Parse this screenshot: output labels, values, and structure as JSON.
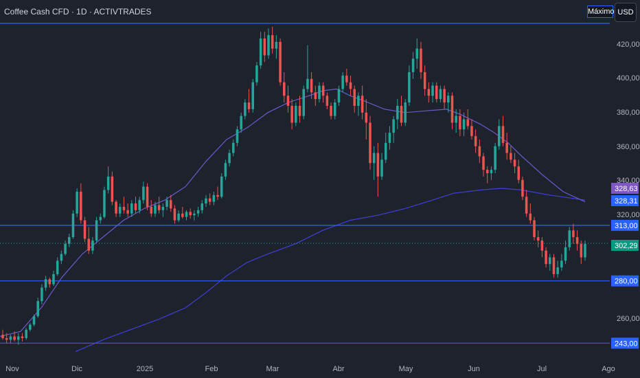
{
  "header": {
    "title": "Coffee Cash CFD · 1D · ACTIVTRADES",
    "max_label": "Máximo",
    "currency_label": "USD"
  },
  "colors": {
    "background": "#1e222d",
    "up": "#26a69a",
    "down": "#ef5350",
    "level_line": "#2962ff",
    "ma_short": "#6a5acd",
    "ma_long": "#3f3fd9"
  },
  "chart_data": {
    "type": "candlestick",
    "ylim": [
      237,
      433
    ],
    "y_ticks": [
      "420,00",
      "400,00",
      "380,00",
      "360,00",
      "340,00",
      "320,00",
      "260,00"
    ],
    "x_ticks": [
      "Nov",
      "Dic",
      "2025",
      "Feb",
      "Mar",
      "Abr",
      "May",
      "Jun",
      "Jul",
      "Ago"
    ],
    "horizontal_levels": [
      {
        "value": 433,
        "label": ""
      },
      {
        "value": 313.0,
        "label": "313,00"
      },
      {
        "value": 280.0,
        "label": "280,00"
      },
      {
        "value": 243.0,
        "label": "243,00"
      }
    ],
    "price_tags": [
      {
        "value": 328.63,
        "label": "328,63",
        "color": "#7e57c2"
      },
      {
        "value": 328.31,
        "label": "328,31",
        "color": "#2962ff"
      },
      {
        "value": 302.29,
        "label": "302,29",
        "color": "#089981"
      }
    ],
    "ma_short": [
      [
        0,
        247
      ],
      [
        30,
        250
      ],
      [
        60,
        264
      ],
      [
        90,
        282
      ],
      [
        120,
        296
      ],
      [
        150,
        306
      ],
      [
        180,
        316
      ],
      [
        210,
        323
      ],
      [
        240,
        328
      ],
      [
        270,
        336
      ],
      [
        300,
        351
      ],
      [
        330,
        364
      ],
      [
        360,
        371
      ],
      [
        390,
        380
      ],
      [
        420,
        386
      ],
      [
        450,
        390
      ],
      [
        470,
        393
      ],
      [
        490,
        394
      ],
      [
        510,
        390
      ],
      [
        530,
        387
      ],
      [
        560,
        382
      ],
      [
        590,
        380
      ],
      [
        620,
        381
      ],
      [
        650,
        382
      ],
      [
        670,
        379
      ],
      [
        700,
        373
      ],
      [
        720,
        368
      ],
      [
        740,
        362
      ],
      [
        760,
        354
      ],
      [
        790,
        343
      ],
      [
        820,
        333
      ],
      [
        852,
        327
      ]
    ],
    "ma_long": [
      [
        110,
        238
      ],
      [
        150,
        245
      ],
      [
        190,
        251
      ],
      [
        230,
        257
      ],
      [
        270,
        264
      ],
      [
        300,
        273
      ],
      [
        330,
        283
      ],
      [
        360,
        291
      ],
      [
        390,
        296
      ],
      [
        430,
        302
      ],
      [
        470,
        310
      ],
      [
        510,
        316
      ],
      [
        550,
        319
      ],
      [
        590,
        323
      ],
      [
        630,
        328
      ],
      [
        660,
        332
      ],
      [
        700,
        334
      ],
      [
        730,
        335
      ],
      [
        760,
        334
      ],
      [
        800,
        331
      ],
      [
        852,
        328
      ]
    ],
    "candles": [
      {
        "o": 248,
        "h": 251,
        "l": 245,
        "c": 246
      },
      {
        "o": 246,
        "h": 249,
        "l": 243,
        "c": 245
      },
      {
        "o": 245,
        "h": 248,
        "l": 243,
        "c": 247
      },
      {
        "o": 247,
        "h": 250,
        "l": 244,
        "c": 245
      },
      {
        "o": 245,
        "h": 249,
        "l": 242,
        "c": 247
      },
      {
        "o": 247,
        "h": 249,
        "l": 244,
        "c": 246
      },
      {
        "o": 246,
        "h": 252,
        "l": 245,
        "c": 251
      },
      {
        "o": 251,
        "h": 255,
        "l": 250,
        "c": 254
      },
      {
        "o": 254,
        "h": 260,
        "l": 253,
        "c": 259
      },
      {
        "o": 259,
        "h": 270,
        "l": 258,
        "c": 268
      },
      {
        "o": 268,
        "h": 278,
        "l": 266,
        "c": 276
      },
      {
        "o": 276,
        "h": 283,
        "l": 274,
        "c": 281
      },
      {
        "o": 281,
        "h": 282,
        "l": 276,
        "c": 278
      },
      {
        "o": 278,
        "h": 286,
        "l": 277,
        "c": 284
      },
      {
        "o": 284,
        "h": 294,
        "l": 283,
        "c": 292
      },
      {
        "o": 292,
        "h": 298,
        "l": 290,
        "c": 296
      },
      {
        "o": 296,
        "h": 304,
        "l": 295,
        "c": 302
      },
      {
        "o": 302,
        "h": 308,
        "l": 300,
        "c": 306
      },
      {
        "o": 306,
        "h": 322,
        "l": 305,
        "c": 320
      },
      {
        "o": 320,
        "h": 335,
        "l": 318,
        "c": 333
      },
      {
        "o": 333,
        "h": 338,
        "l": 314,
        "c": 316
      },
      {
        "o": 316,
        "h": 318,
        "l": 303,
        "c": 305
      },
      {
        "o": 305,
        "h": 312,
        "l": 296,
        "c": 298
      },
      {
        "o": 298,
        "h": 306,
        "l": 296,
        "c": 304
      },
      {
        "o": 304,
        "h": 318,
        "l": 303,
        "c": 316
      },
      {
        "o": 316,
        "h": 320,
        "l": 314,
        "c": 318
      },
      {
        "o": 318,
        "h": 336,
        "l": 317,
        "c": 334
      },
      {
        "o": 334,
        "h": 348,
        "l": 332,
        "c": 342
      },
      {
        "o": 342,
        "h": 345,
        "l": 325,
        "c": 327
      },
      {
        "o": 327,
        "h": 328,
        "l": 318,
        "c": 320
      },
      {
        "o": 320,
        "h": 326,
        "l": 318,
        "c": 324
      },
      {
        "o": 324,
        "h": 330,
        "l": 320,
        "c": 322
      },
      {
        "o": 322,
        "h": 326,
        "l": 318,
        "c": 320
      },
      {
        "o": 320,
        "h": 328,
        "l": 318,
        "c": 326
      },
      {
        "o": 326,
        "h": 330,
        "l": 320,
        "c": 322
      },
      {
        "o": 322,
        "h": 330,
        "l": 320,
        "c": 328
      },
      {
        "o": 328,
        "h": 339,
        "l": 326,
        "c": 336
      },
      {
        "o": 336,
        "h": 338,
        "l": 322,
        "c": 324
      },
      {
        "o": 324,
        "h": 328,
        "l": 318,
        "c": 320
      },
      {
        "o": 320,
        "h": 327,
        "l": 318,
        "c": 325
      },
      {
        "o": 325,
        "h": 330,
        "l": 320,
        "c": 322
      },
      {
        "o": 322,
        "h": 326,
        "l": 318,
        "c": 324
      },
      {
        "o": 324,
        "h": 330,
        "l": 322,
        "c": 328
      },
      {
        "o": 328,
        "h": 331,
        "l": 321,
        "c": 323
      },
      {
        "o": 323,
        "h": 325,
        "l": 314,
        "c": 316
      },
      {
        "o": 316,
        "h": 322,
        "l": 315,
        "c": 320
      },
      {
        "o": 320,
        "h": 324,
        "l": 317,
        "c": 318
      },
      {
        "o": 318,
        "h": 322,
        "l": 316,
        "c": 321
      },
      {
        "o": 321,
        "h": 323,
        "l": 317,
        "c": 319
      },
      {
        "o": 319,
        "h": 322,
        "l": 316,
        "c": 320
      },
      {
        "o": 320,
        "h": 324,
        "l": 318,
        "c": 322
      },
      {
        "o": 322,
        "h": 328,
        "l": 320,
        "c": 326
      },
      {
        "o": 326,
        "h": 331,
        "l": 324,
        "c": 329
      },
      {
        "o": 329,
        "h": 332,
        "l": 325,
        "c": 327
      },
      {
        "o": 327,
        "h": 333,
        "l": 325,
        "c": 331
      },
      {
        "o": 331,
        "h": 336,
        "l": 328,
        "c": 330
      },
      {
        "o": 330,
        "h": 344,
        "l": 329,
        "c": 342
      },
      {
        "o": 342,
        "h": 352,
        "l": 340,
        "c": 350
      },
      {
        "o": 350,
        "h": 358,
        "l": 348,
        "c": 356
      },
      {
        "o": 356,
        "h": 364,
        "l": 354,
        "c": 362
      },
      {
        "o": 362,
        "h": 372,
        "l": 360,
        "c": 370
      },
      {
        "o": 370,
        "h": 380,
        "l": 368,
        "c": 378
      },
      {
        "o": 378,
        "h": 388,
        "l": 376,
        "c": 386
      },
      {
        "o": 386,
        "h": 394,
        "l": 380,
        "c": 382
      },
      {
        "o": 382,
        "h": 400,
        "l": 380,
        "c": 398
      },
      {
        "o": 398,
        "h": 410,
        "l": 396,
        "c": 408
      },
      {
        "o": 408,
        "h": 428,
        "l": 406,
        "c": 424
      },
      {
        "o": 424,
        "h": 428,
        "l": 410,
        "c": 414
      },
      {
        "o": 414,
        "h": 430,
        "l": 412,
        "c": 426
      },
      {
        "o": 426,
        "h": 431,
        "l": 415,
        "c": 418
      },
      {
        "o": 418,
        "h": 426,
        "l": 412,
        "c": 422
      },
      {
        "o": 422,
        "h": 424,
        "l": 396,
        "c": 398
      },
      {
        "o": 398,
        "h": 404,
        "l": 386,
        "c": 390
      },
      {
        "o": 390,
        "h": 396,
        "l": 380,
        "c": 384
      },
      {
        "o": 384,
        "h": 388,
        "l": 370,
        "c": 374
      },
      {
        "o": 374,
        "h": 386,
        "l": 372,
        "c": 384
      },
      {
        "o": 384,
        "h": 390,
        "l": 374,
        "c": 378
      },
      {
        "o": 378,
        "h": 396,
        "l": 376,
        "c": 394
      },
      {
        "o": 394,
        "h": 420,
        "l": 392,
        "c": 400
      },
      {
        "o": 400,
        "h": 404,
        "l": 388,
        "c": 392
      },
      {
        "o": 392,
        "h": 396,
        "l": 384,
        "c": 388
      },
      {
        "o": 388,
        "h": 398,
        "l": 386,
        "c": 396
      },
      {
        "o": 396,
        "h": 398,
        "l": 386,
        "c": 390
      },
      {
        "o": 390,
        "h": 392,
        "l": 382,
        "c": 384
      },
      {
        "o": 384,
        "h": 386,
        "l": 376,
        "c": 378
      },
      {
        "o": 378,
        "h": 388,
        "l": 376,
        "c": 386
      },
      {
        "o": 386,
        "h": 396,
        "l": 384,
        "c": 394
      },
      {
        "o": 394,
        "h": 404,
        "l": 392,
        "c": 402
      },
      {
        "o": 402,
        "h": 406,
        "l": 396,
        "c": 398
      },
      {
        "o": 398,
        "h": 402,
        "l": 390,
        "c": 394
      },
      {
        "o": 394,
        "h": 396,
        "l": 380,
        "c": 384
      },
      {
        "o": 384,
        "h": 392,
        "l": 378,
        "c": 390
      },
      {
        "o": 390,
        "h": 396,
        "l": 376,
        "c": 380
      },
      {
        "o": 380,
        "h": 388,
        "l": 364,
        "c": 374
      },
      {
        "o": 374,
        "h": 378,
        "l": 346,
        "c": 350
      },
      {
        "o": 350,
        "h": 360,
        "l": 340,
        "c": 356
      },
      {
        "o": 356,
        "h": 362,
        "l": 330,
        "c": 342
      },
      {
        "o": 342,
        "h": 356,
        "l": 340,
        "c": 352
      },
      {
        "o": 352,
        "h": 368,
        "l": 350,
        "c": 362
      },
      {
        "o": 362,
        "h": 372,
        "l": 358,
        "c": 368
      },
      {
        "o": 368,
        "h": 378,
        "l": 362,
        "c": 376
      },
      {
        "o": 376,
        "h": 388,
        "l": 370,
        "c": 384
      },
      {
        "o": 384,
        "h": 390,
        "l": 372,
        "c": 374
      },
      {
        "o": 374,
        "h": 388,
        "l": 372,
        "c": 386
      },
      {
        "o": 386,
        "h": 408,
        "l": 384,
        "c": 404
      },
      {
        "o": 404,
        "h": 416,
        "l": 400,
        "c": 412
      },
      {
        "o": 412,
        "h": 424,
        "l": 406,
        "c": 418
      },
      {
        "o": 418,
        "h": 422,
        "l": 400,
        "c": 404
      },
      {
        "o": 404,
        "h": 408,
        "l": 390,
        "c": 394
      },
      {
        "o": 394,
        "h": 398,
        "l": 386,
        "c": 390
      },
      {
        "o": 390,
        "h": 398,
        "l": 386,
        "c": 396
      },
      {
        "o": 396,
        "h": 398,
        "l": 386,
        "c": 388
      },
      {
        "o": 388,
        "h": 396,
        "l": 386,
        "c": 394
      },
      {
        "o": 394,
        "h": 396,
        "l": 382,
        "c": 386
      },
      {
        "o": 386,
        "h": 392,
        "l": 380,
        "c": 390
      },
      {
        "o": 390,
        "h": 392,
        "l": 370,
        "c": 374
      },
      {
        "o": 374,
        "h": 382,
        "l": 368,
        "c": 378
      },
      {
        "o": 378,
        "h": 382,
        "l": 366,
        "c": 370
      },
      {
        "o": 370,
        "h": 380,
        "l": 366,
        "c": 376
      },
      {
        "o": 376,
        "h": 382,
        "l": 370,
        "c": 372
      },
      {
        "o": 372,
        "h": 376,
        "l": 364,
        "c": 366
      },
      {
        "o": 366,
        "h": 370,
        "l": 356,
        "c": 360
      },
      {
        "o": 360,
        "h": 364,
        "l": 350,
        "c": 354
      },
      {
        "o": 354,
        "h": 356,
        "l": 342,
        "c": 346
      },
      {
        "o": 346,
        "h": 348,
        "l": 338,
        "c": 344
      },
      {
        "o": 344,
        "h": 348,
        "l": 340,
        "c": 346
      },
      {
        "o": 346,
        "h": 362,
        "l": 344,
        "c": 360
      },
      {
        "o": 360,
        "h": 376,
        "l": 358,
        "c": 372
      },
      {
        "o": 372,
        "h": 378,
        "l": 360,
        "c": 362
      },
      {
        "o": 362,
        "h": 368,
        "l": 352,
        "c": 356
      },
      {
        "o": 356,
        "h": 360,
        "l": 350,
        "c": 352
      },
      {
        "o": 352,
        "h": 356,
        "l": 344,
        "c": 348
      },
      {
        "o": 348,
        "h": 352,
        "l": 338,
        "c": 340
      },
      {
        "o": 340,
        "h": 342,
        "l": 328,
        "c": 330
      },
      {
        "o": 330,
        "h": 334,
        "l": 318,
        "c": 320
      },
      {
        "o": 320,
        "h": 326,
        "l": 314,
        "c": 316
      },
      {
        "o": 316,
        "h": 318,
        "l": 304,
        "c": 306
      },
      {
        "o": 306,
        "h": 310,
        "l": 300,
        "c": 304
      },
      {
        "o": 304,
        "h": 306,
        "l": 294,
        "c": 298
      },
      {
        "o": 298,
        "h": 300,
        "l": 288,
        "c": 290
      },
      {
        "o": 290,
        "h": 296,
        "l": 286,
        "c": 294
      },
      {
        "o": 294,
        "h": 296,
        "l": 282,
        "c": 284
      },
      {
        "o": 284,
        "h": 292,
        "l": 282,
        "c": 288
      },
      {
        "o": 288,
        "h": 296,
        "l": 286,
        "c": 292
      },
      {
        "o": 292,
        "h": 304,
        "l": 290,
        "c": 300
      },
      {
        "o": 300,
        "h": 312,
        "l": 298,
        "c": 310
      },
      {
        "o": 310,
        "h": 314,
        "l": 302,
        "c": 306
      },
      {
        "o": 306,
        "h": 310,
        "l": 298,
        "c": 302
      },
      {
        "o": 302,
        "h": 304,
        "l": 290,
        "c": 294
      },
      {
        "o": 294,
        "h": 304,
        "l": 292,
        "c": 302
      }
    ]
  }
}
